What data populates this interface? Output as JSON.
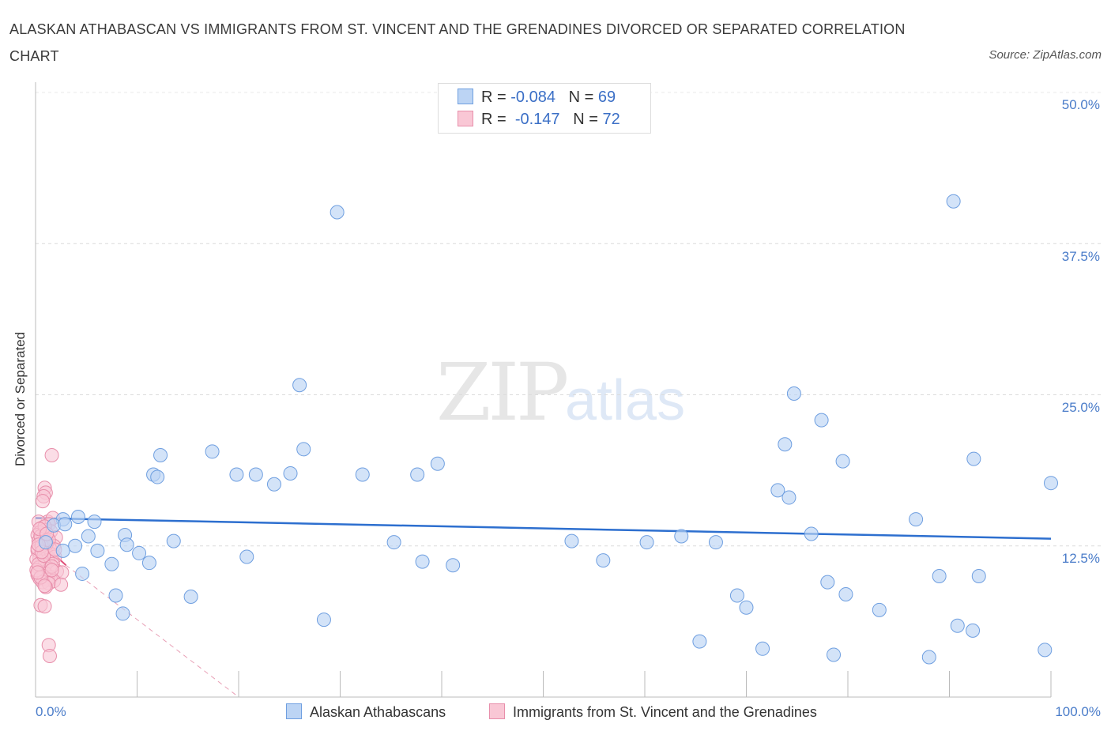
{
  "header": {
    "title": "ALASKAN ATHABASCAN VS IMMIGRANTS FROM ST. VINCENT AND THE GRENADINES DIVORCED OR SEPARATED CORRELATION CHART",
    "source": "Source: ZipAtlas.com"
  },
  "watermark": {
    "zip": "ZIP",
    "atlas": "atlas"
  },
  "legend": {
    "rows": [
      {
        "r_label": "R =",
        "r_value": "-0.084",
        "n_label": "N =",
        "n_value": "69"
      },
      {
        "r_label": "R =",
        "r_value": "-0.147",
        "n_label": "N =",
        "n_value": "72"
      }
    ]
  },
  "colors": {
    "blue_fill": "#bcd4f4",
    "blue_stroke": "#6f9fe0",
    "blue_line": "#2d6fcf",
    "pink_fill": "#f9c7d5",
    "pink_stroke": "#e88fab",
    "pink_line": "#e0507a"
  },
  "chart_data": {
    "type": "scatter",
    "title": "ALASKAN ATHABASCAN VS IMMIGRANTS FROM ST. VINCENT AND THE GRENADINES DIVORCED OR SEPARATED CORRELATION CHART",
    "xlabel": "",
    "ylabel": "Divorced or Separated",
    "xlim": [
      0,
      100
    ],
    "ylim": [
      0,
      50
    ],
    "x_tick_labels": [
      "0.0%",
      "100.0%"
    ],
    "y_ticks": [
      12.5,
      25.0,
      37.5,
      50.0
    ],
    "y_tick_labels": [
      "12.5%",
      "25.0%",
      "37.5%",
      "50.0%"
    ],
    "grid": true,
    "series": [
      {
        "name": "Alaskan Athabascans",
        "R": -0.084,
        "N": 69,
        "points": [
          [
            29.7,
            40.1
          ],
          [
            90.4,
            41.0
          ],
          [
            26.0,
            25.8
          ],
          [
            74.7,
            25.1
          ],
          [
            77.4,
            22.9
          ],
          [
            73.8,
            20.9
          ],
          [
            17.4,
            20.3
          ],
          [
            12.3,
            20.0
          ],
          [
            21.7,
            18.4
          ],
          [
            26.4,
            20.5
          ],
          [
            11.6,
            18.4
          ],
          [
            12.0,
            18.2
          ],
          [
            19.8,
            18.4
          ],
          [
            23.5,
            17.6
          ],
          [
            25.1,
            18.5
          ],
          [
            32.2,
            18.4
          ],
          [
            37.6,
            18.4
          ],
          [
            39.6,
            19.3
          ],
          [
            79.5,
            19.5
          ],
          [
            92.4,
            19.7
          ],
          [
            100.0,
            17.7
          ],
          [
            73.1,
            17.1
          ],
          [
            74.2,
            16.5
          ],
          [
            86.7,
            14.7
          ],
          [
            4.2,
            14.9
          ],
          [
            5.8,
            14.5
          ],
          [
            2.7,
            14.7
          ],
          [
            1.8,
            14.2
          ],
          [
            2.9,
            14.3
          ],
          [
            8.8,
            13.4
          ],
          [
            5.2,
            13.3
          ],
          [
            13.6,
            12.9
          ],
          [
            9.0,
            12.6
          ],
          [
            3.9,
            12.5
          ],
          [
            1.0,
            12.8
          ],
          [
            35.3,
            12.8
          ],
          [
            60.2,
            12.8
          ],
          [
            63.6,
            13.3
          ],
          [
            67.0,
            12.8
          ],
          [
            52.8,
            12.9
          ],
          [
            76.4,
            13.5
          ],
          [
            2.7,
            12.1
          ],
          [
            6.1,
            12.1
          ],
          [
            10.2,
            11.9
          ],
          [
            20.8,
            11.6
          ],
          [
            7.5,
            11.0
          ],
          [
            11.2,
            11.1
          ],
          [
            38.1,
            11.2
          ],
          [
            41.1,
            10.9
          ],
          [
            55.9,
            11.3
          ],
          [
            4.6,
            10.2
          ],
          [
            78.0,
            9.5
          ],
          [
            89.0,
            10.0
          ],
          [
            92.9,
            10.0
          ],
          [
            7.9,
            8.4
          ],
          [
            15.3,
            8.3
          ],
          [
            69.1,
            8.4
          ],
          [
            70.0,
            7.4
          ],
          [
            79.8,
            8.5
          ],
          [
            83.1,
            7.2
          ],
          [
            8.6,
            6.9
          ],
          [
            28.4,
            6.4
          ],
          [
            90.8,
            5.9
          ],
          [
            92.3,
            5.5
          ],
          [
            65.4,
            4.6
          ],
          [
            71.6,
            4.0
          ],
          [
            78.6,
            3.5
          ],
          [
            88.0,
            3.3
          ],
          [
            99.4,
            3.9
          ]
        ]
      },
      {
        "name": "Immigrants from St. Vincent and the Grenadines",
        "R": -0.147,
        "N": 72,
        "points": [
          [
            1.6,
            20.0
          ],
          [
            0.9,
            17.3
          ],
          [
            1.0,
            16.9
          ],
          [
            0.8,
            16.6
          ],
          [
            0.7,
            16.2
          ],
          [
            1.2,
            14.5
          ],
          [
            1.7,
            14.8
          ],
          [
            0.6,
            14.0
          ],
          [
            1.3,
            14.3
          ],
          [
            0.3,
            14.5
          ],
          [
            0.9,
            13.8
          ],
          [
            0.4,
            13.6
          ],
          [
            1.5,
            13.7
          ],
          [
            2.0,
            13.2
          ],
          [
            0.2,
            13.4
          ],
          [
            0.7,
            13.1
          ],
          [
            1.1,
            12.9
          ],
          [
            0.5,
            12.7
          ],
          [
            1.8,
            12.5
          ],
          [
            0.3,
            12.9
          ],
          [
            1.4,
            12.3
          ],
          [
            0.8,
            12.4
          ],
          [
            0.2,
            12.1
          ],
          [
            1.0,
            12.0
          ],
          [
            1.6,
            11.8
          ],
          [
            0.6,
            11.9
          ],
          [
            1.9,
            11.6
          ],
          [
            0.4,
            11.5
          ],
          [
            1.2,
            11.3
          ],
          [
            0.7,
            11.2
          ],
          [
            0.1,
            11.4
          ],
          [
            1.7,
            11.0
          ],
          [
            0.9,
            10.9
          ],
          [
            0.3,
            10.7
          ],
          [
            1.4,
            10.6
          ],
          [
            2.1,
            10.4
          ],
          [
            0.6,
            10.3
          ],
          [
            1.0,
            10.2
          ],
          [
            0.2,
            10.1
          ],
          [
            1.5,
            9.9
          ],
          [
            0.8,
            10.0
          ],
          [
            2.6,
            10.3
          ],
          [
            0.4,
            9.8
          ],
          [
            1.2,
            9.7
          ],
          [
            1.8,
            9.6
          ],
          [
            0.1,
            10.5
          ],
          [
            0.7,
            9.5
          ],
          [
            1.3,
            9.4
          ],
          [
            2.5,
            9.3
          ],
          [
            1.0,
            9.1
          ],
          [
            0.5,
            9.9
          ],
          [
            0.2,
            12.3
          ],
          [
            0.5,
            13.3
          ],
          [
            0.9,
            14.1
          ],
          [
            1.1,
            12.7
          ],
          [
            0.3,
            11.0
          ],
          [
            1.6,
            10.8
          ],
          [
            0.6,
            12.5
          ],
          [
            0.4,
            13.9
          ],
          [
            1.3,
            13.0
          ],
          [
            0.8,
            11.7
          ],
          [
            1.9,
            12.2
          ],
          [
            0.2,
            10.3
          ],
          [
            0.9,
            9.2
          ],
          [
            0.5,
            7.6
          ],
          [
            0.9,
            7.5
          ],
          [
            1.3,
            4.3
          ],
          [
            1.4,
            3.4
          ],
          [
            0.6,
            12.0
          ],
          [
            1.1,
            13.5
          ],
          [
            0.3,
            12.6
          ],
          [
            1.6,
            10.5
          ]
        ]
      }
    ],
    "trend_lines": [
      {
        "series": "Alaskan Athabascans",
        "x": [
          0,
          100
        ],
        "y": [
          14.8,
          13.1
        ],
        "style": "solid"
      },
      {
        "series": "Immigrants from St. Vincent and the Grenadines",
        "x_solid": [
          0,
          3.0
        ],
        "y_solid": [
          13.2,
          10.9
        ],
        "x_dashed": [
          3.0,
          20.0
        ],
        "y_dashed": [
          10.9,
          0.0
        ],
        "style": "solid-then-dashed"
      }
    ]
  },
  "bottom_legend": {
    "items": [
      {
        "label": "Alaskan Athabascans"
      },
      {
        "label": "Immigrants from St. Vincent and the Grenadines"
      }
    ]
  }
}
